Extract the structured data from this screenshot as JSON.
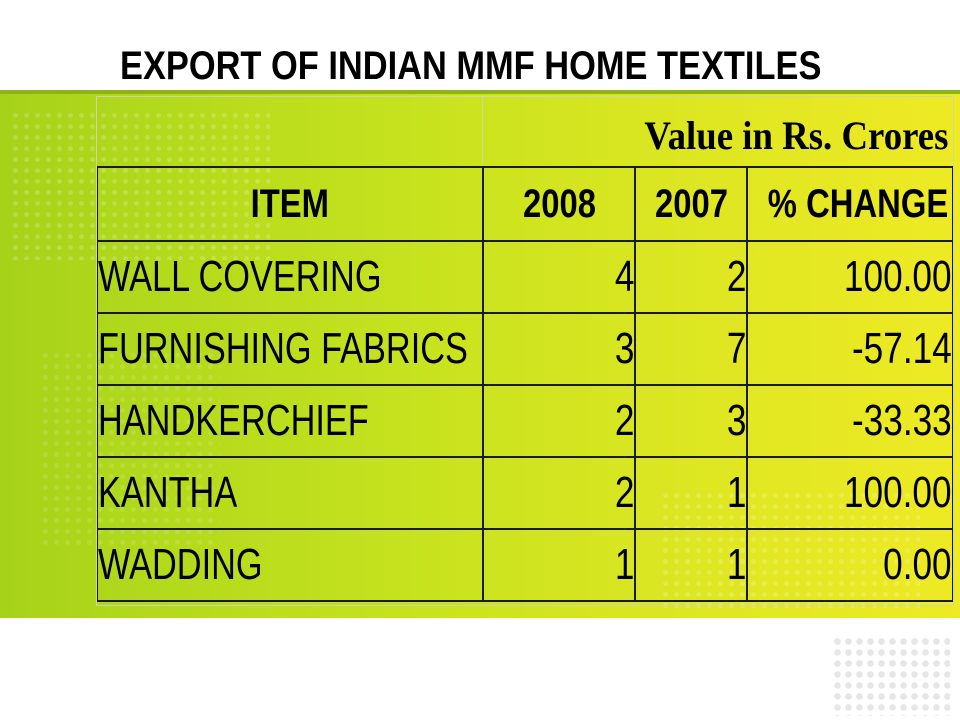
{
  "slide": {
    "title": "EXPORT OF INDIAN MMF HOME TEXTILES",
    "units_label": "Value in Rs. Crores",
    "colors": {
      "band_start": "#a6d21a",
      "band_end": "#eeea24",
      "text": "#000000"
    }
  },
  "table": {
    "columns": [
      "ITEM",
      "2008",
      "2007",
      "% CHANGE"
    ],
    "rows": [
      {
        "item": "WALL COVERING",
        "v2008": "4",
        "v2007": "2",
        "change": "100.00"
      },
      {
        "item": "FURNISHING FABRICS",
        "v2008": "3",
        "v2007": "7",
        "change": "-57.14"
      },
      {
        "item": "HANDKERCHIEF",
        "v2008": "2",
        "v2007": "3",
        "change": "-33.33"
      },
      {
        "item": "KANTHA",
        "v2008": "2",
        "v2007": "1",
        "change": "100.00"
      },
      {
        "item": "WADDING",
        "v2008": "1",
        "v2007": "1",
        "change": "0.00"
      }
    ]
  }
}
